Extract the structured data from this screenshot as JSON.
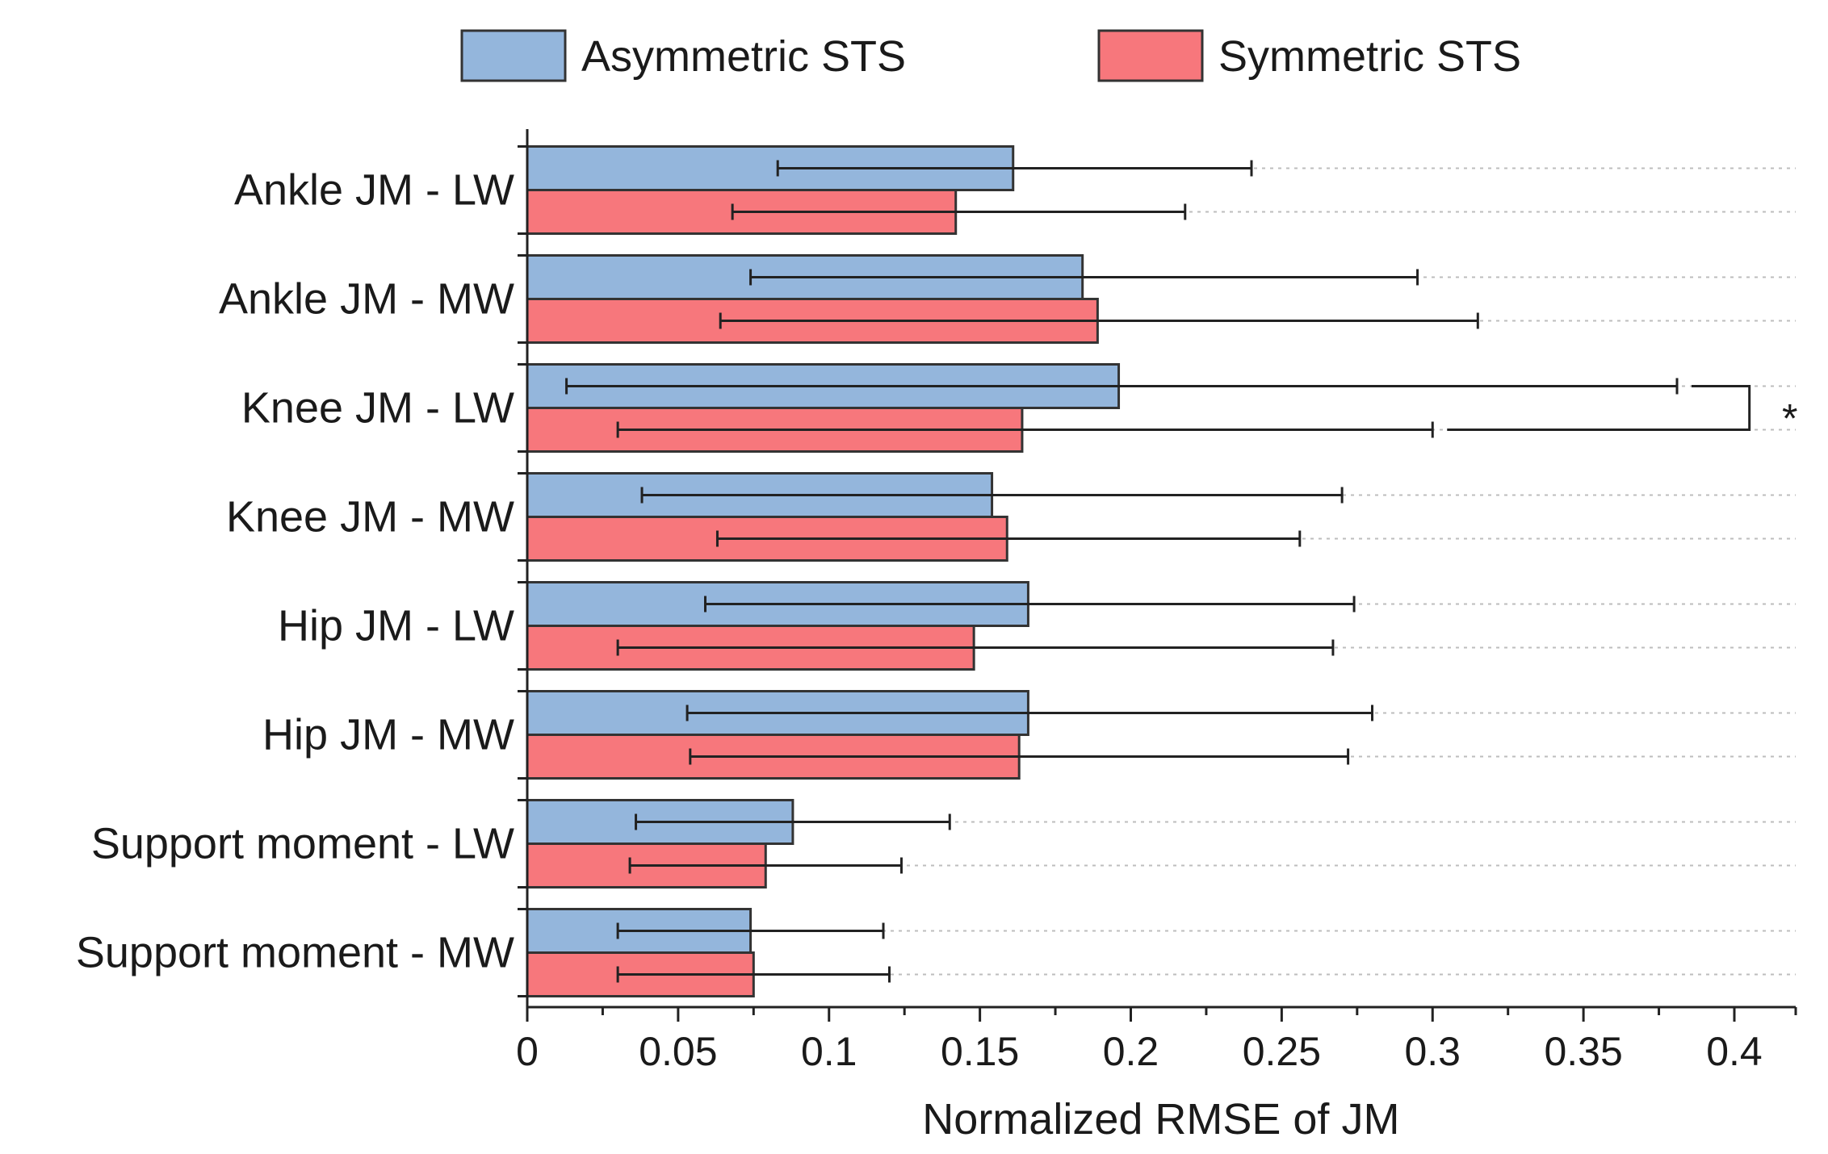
{
  "chart_data": {
    "type": "bar",
    "orientation": "horizontal",
    "title": "",
    "xlabel": "Normalized RMSE of JM",
    "ylabel": "",
    "xlim": [
      0,
      0.42
    ],
    "xticks": [
      "0",
      "0.05",
      "0.1",
      "0.15",
      "0.2",
      "0.25",
      "0.3",
      "0.35",
      "0.4"
    ],
    "xtick_values": [
      0,
      0.05,
      0.1,
      0.15,
      0.2,
      0.25,
      0.3,
      0.35,
      0.4
    ],
    "grid": true,
    "legend_position": "top-center",
    "categories": [
      "Ankle JM - LW",
      "Ankle JM - MW",
      "Knee JM - LW",
      "Knee JM - MW",
      "Hip JM - LW",
      "Hip JM - MW",
      "Support moment - LW",
      "Support moment - MW"
    ],
    "series": [
      {
        "name": "Asymmetric STS",
        "color": "#94b6dc",
        "values": [
          0.161,
          0.184,
          0.196,
          0.154,
          0.166,
          0.166,
          0.088,
          0.074
        ],
        "err_low": [
          0.083,
          0.074,
          0.013,
          0.038,
          0.059,
          0.053,
          0.036,
          0.03
        ],
        "err_high": [
          0.24,
          0.295,
          0.381,
          0.27,
          0.274,
          0.28,
          0.14,
          0.118
        ]
      },
      {
        "name": "Symmetric STS",
        "color": "#f7777c",
        "values": [
          0.142,
          0.189,
          0.164,
          0.159,
          0.148,
          0.163,
          0.079,
          0.075
        ],
        "err_low": [
          0.068,
          0.064,
          0.03,
          0.063,
          0.03,
          0.054,
          0.034,
          0.03
        ],
        "err_high": [
          0.218,
          0.315,
          0.3,
          0.256,
          0.267,
          0.272,
          0.124,
          0.12
        ]
      }
    ],
    "annotations": [
      {
        "category": "Knee JM - LW",
        "text": "*"
      }
    ]
  }
}
